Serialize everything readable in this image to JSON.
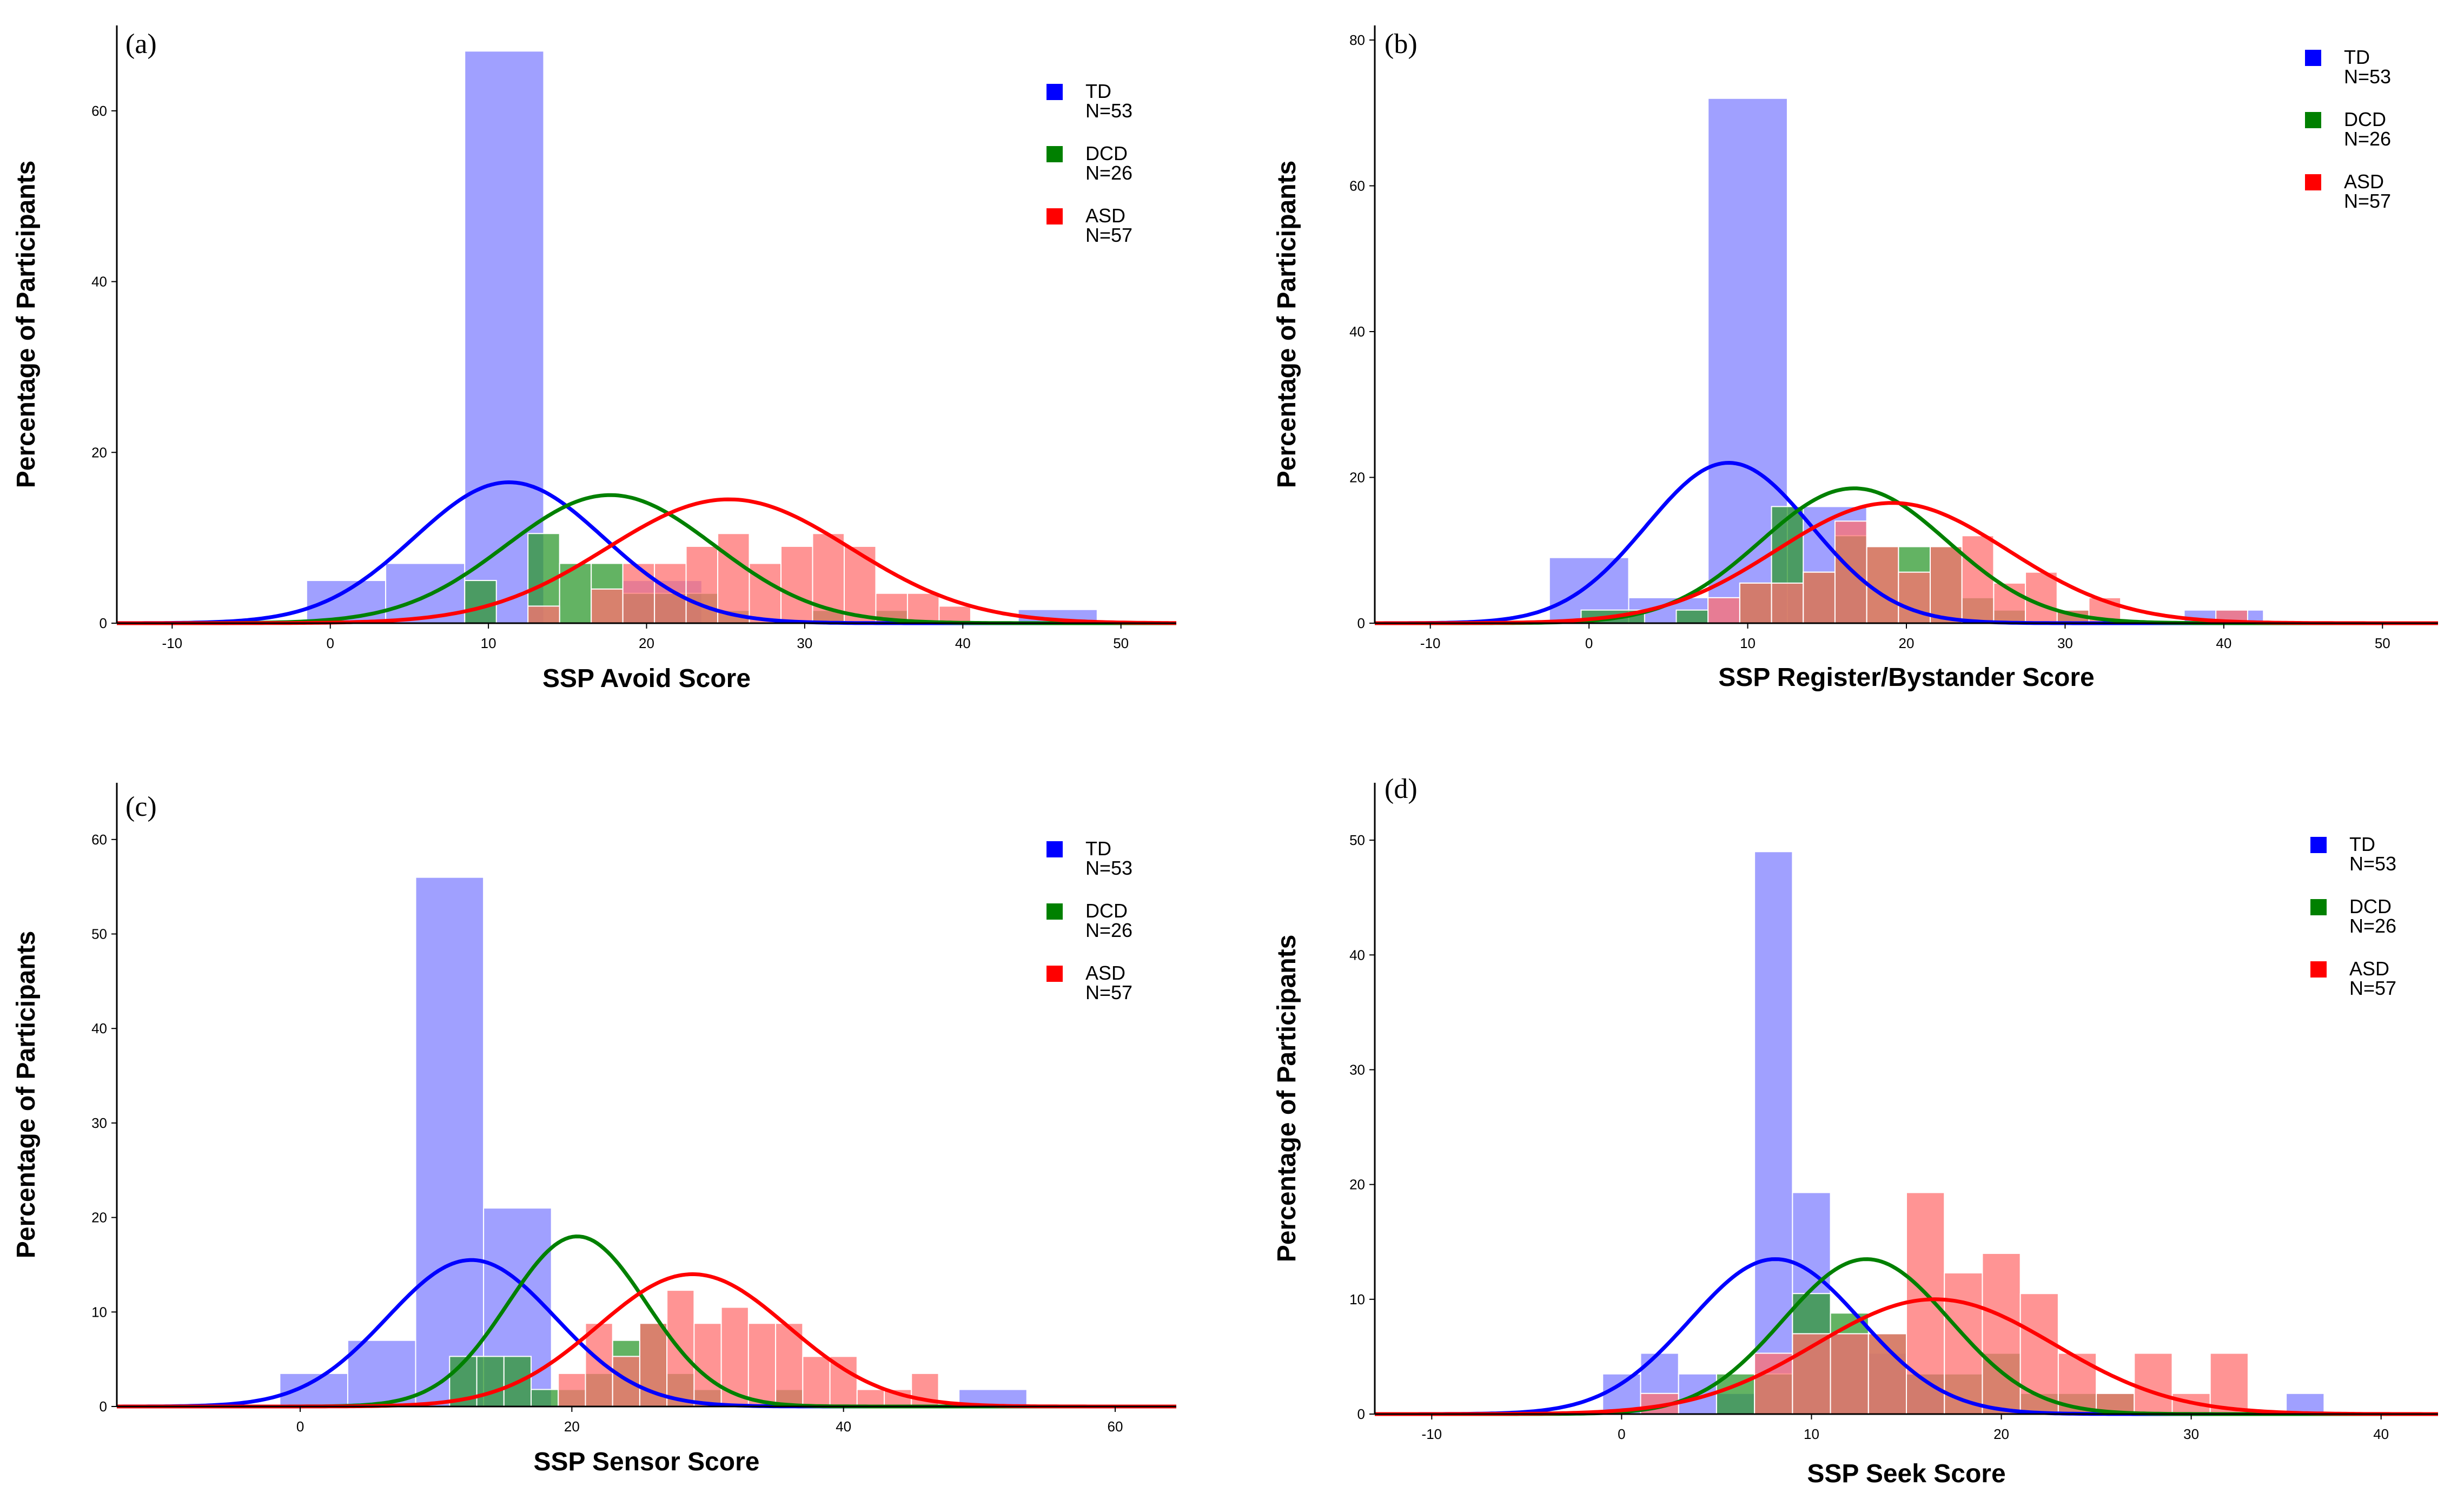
{
  "chart_data": [
    {
      "type": "histogram",
      "panel": "(a)",
      "xlabel": "SSP Avoid Score",
      "ylabel": "Percentage of Participants",
      "xlim": [
        -13.5,
        53.5
      ],
      "ylim": [
        0,
        70
      ],
      "xticks": [
        "-10",
        "0",
        "10",
        "20",
        "30",
        "40",
        "50"
      ],
      "xtick_values": [
        -10,
        0,
        10,
        20,
        30,
        40,
        50
      ],
      "yticks": [
        "0",
        "20",
        "40",
        "60"
      ],
      "ytick_values": [
        0,
        20,
        40,
        60
      ],
      "legend": [
        {
          "name": "TD",
          "n": "N=53",
          "color": "#0000ff"
        },
        {
          "name": "DCD",
          "n": "N=26",
          "color": "#008000"
        },
        {
          "name": "ASD",
          "n": "N=57",
          "color": "#ff0000"
        }
      ],
      "series": [
        {
          "name": "TD",
          "color": "#0000ff",
          "fill": "#8080ff",
          "bins": [
            [
              -1.5,
              3.5,
              5
            ],
            [
              3.5,
              8.5,
              7
            ],
            [
              8.5,
              13.5,
              67
            ],
            [
              18.5,
              23.5,
              5
            ],
            [
              43.5,
              48.5,
              1.6
            ]
          ],
          "curve": {
            "mean": 11.3,
            "sd": 6.0,
            "peak": 16.5
          }
        },
        {
          "name": "DCD",
          "color": "#008000",
          "fill": "#2f9a2f",
          "bins": [
            [
              8.5,
              10.5,
              5
            ],
            [
              12.5,
              14.5,
              10.5
            ],
            [
              14.5,
              16.5,
              7
            ],
            [
              16.5,
              18.5,
              7
            ],
            [
              18.5,
              20.5,
              3.5
            ],
            [
              20.5,
              22.5,
              3.5
            ],
            [
              22.5,
              24.5,
              3.5
            ],
            [
              24.5,
              26.5,
              1.5
            ],
            [
              30.5,
              32.5,
              1.5
            ],
            [
              34.5,
              36.5,
              1.5
            ]
          ],
          "curve": {
            "mean": 17.7,
            "sd": 6.6,
            "peak": 15
          }
        },
        {
          "name": "ASD",
          "color": "#ff0000",
          "fill": "#ff7070",
          "bins": [
            [
              12.5,
              14.5,
              2
            ],
            [
              16.5,
              18.5,
              4
            ],
            [
              18.5,
              20.5,
              7
            ],
            [
              20.5,
              22.5,
              7
            ],
            [
              22.5,
              24.5,
              9
            ],
            [
              24.5,
              26.5,
              10.5
            ],
            [
              26.5,
              28.5,
              7
            ],
            [
              28.5,
              30.5,
              9
            ],
            [
              30.5,
              32.5,
              10.5
            ],
            [
              32.5,
              34.5,
              9
            ],
            [
              34.5,
              36.5,
              3.5
            ],
            [
              36.5,
              38.5,
              3.5
            ],
            [
              38.5,
              40.5,
              2
            ]
          ],
          "curve": {
            "mean": 25.2,
            "sd": 7.7,
            "peak": 14.5
          }
        }
      ]
    },
    {
      "type": "histogram",
      "panel": "(b)",
      "xlabel": "SSP Register/Bystander Score",
      "ylabel": "Percentage of Participants",
      "xlim": [
        -13.5,
        53.5
      ],
      "ylim": [
        0,
        82
      ],
      "xticks": [
        "-10",
        "0",
        "10",
        "20",
        "30",
        "40",
        "50"
      ],
      "xtick_values": [
        -10,
        0,
        10,
        20,
        30,
        40,
        50
      ],
      "yticks": [
        "0",
        "20",
        "40",
        "60",
        "80"
      ],
      "ytick_values": [
        0,
        20,
        40,
        60,
        80
      ],
      "legend": [
        {
          "name": "TD",
          "n": "N=53",
          "color": "#0000ff"
        },
        {
          "name": "DCD",
          "n": "N=26",
          "color": "#008000"
        },
        {
          "name": "ASD",
          "n": "N=57",
          "color": "#ff0000"
        }
      ],
      "series": [
        {
          "name": "TD",
          "color": "#0000ff",
          "fill": "#8080ff",
          "bins": [
            [
              -2.5,
              2.5,
              9
            ],
            [
              2.5,
              7.5,
              3.5
            ],
            [
              7.5,
              12.5,
              72
            ],
            [
              12.5,
              17.5,
              16
            ],
            [
              37.5,
              42.5,
              1.8
            ]
          ],
          "curve": {
            "mean": 8.8,
            "sd": 5.2,
            "peak": 22
          }
        },
        {
          "name": "DCD",
          "color": "#008000",
          "fill": "#2f9a2f",
          "bins": [
            [
              -0.5,
              3.5,
              1.8
            ],
            [
              5.5,
              7.5,
              1.8
            ],
            [
              9.5,
              11.5,
              5.5
            ],
            [
              11.5,
              13.5,
              16
            ],
            [
              13.5,
              15.5,
              7
            ],
            [
              15.5,
              17.5,
              12
            ],
            [
              17.5,
              19.5,
              10.5
            ],
            [
              19.5,
              21.5,
              10.5
            ],
            [
              21.5,
              23.5,
              10.5
            ],
            [
              23.5,
              25.5,
              3.5
            ],
            [
              25.5,
              27.5,
              1.8
            ],
            [
              29.5,
              31.5,
              1.8
            ]
          ],
          "curve": {
            "mean": 16.7,
            "sd": 5.9,
            "peak": 18.5
          }
        },
        {
          "name": "ASD",
          "color": "#ff0000",
          "fill": "#ff7070",
          "bins": [
            [
              7.5,
              9.5,
              3.5
            ],
            [
              9.5,
              11.5,
              5.5
            ],
            [
              11.5,
              13.5,
              5.5
            ],
            [
              13.5,
              15.5,
              7
            ],
            [
              15.5,
              17.5,
              14
            ],
            [
              17.5,
              19.5,
              10.5
            ],
            [
              19.5,
              21.5,
              7
            ],
            [
              21.5,
              23.5,
              10.5
            ],
            [
              23.5,
              25.5,
              12
            ],
            [
              25.5,
              27.5,
              5.5
            ],
            [
              27.5,
              29.5,
              7
            ],
            [
              29.5,
              31.5,
              1.8
            ],
            [
              31.5,
              33.5,
              3.5
            ],
            [
              39.5,
              41.5,
              1.8
            ]
          ],
          "curve": {
            "mean": 19.1,
            "sd": 7.3,
            "peak": 16.5
          }
        }
      ]
    },
    {
      "type": "histogram",
      "panel": "(c)",
      "xlabel": "SSP Sensor Score",
      "ylabel": "Percentage of Participants",
      "xlim": [
        -13.5,
        64.5
      ],
      "ylim": [
        0,
        66
      ],
      "xticks": [
        "0",
        "20",
        "40",
        "60"
      ],
      "xtick_values": [
        0,
        20,
        40,
        60
      ],
      "yticks": [
        "0",
        "10",
        "20",
        "30",
        "40",
        "50",
        "60"
      ],
      "ytick_values": [
        0,
        10,
        20,
        30,
        40,
        50,
        60
      ],
      "legend": [
        {
          "name": "TD",
          "n": "N=53",
          "color": "#0000ff"
        },
        {
          "name": "DCD",
          "n": "N=26",
          "color": "#008000"
        },
        {
          "name": "ASD",
          "n": "N=57",
          "color": "#ff0000"
        }
      ],
      "series": [
        {
          "name": "TD",
          "color": "#0000ff",
          "fill": "#8080ff",
          "bins": [
            [
              -1.5,
              3.5,
              3.5
            ],
            [
              3.5,
              8.5,
              7
            ],
            [
              8.5,
              13.5,
              56
            ],
            [
              13.5,
              18.5,
              21
            ],
            [
              48.5,
              53.5,
              1.8
            ]
          ],
          "curve": {
            "mean": 12.6,
            "sd": 6.2,
            "peak": 15.5
          }
        },
        {
          "name": "DCD",
          "color": "#008000",
          "fill": "#2f9a2f",
          "bins": [
            [
              11,
              13,
              5.3
            ],
            [
              13,
              15,
              5.3
            ],
            [
              15,
              17,
              5.3
            ],
            [
              17,
              19,
              1.8
            ],
            [
              19,
              21,
              1.8
            ],
            [
              21,
              23,
              3.5
            ],
            [
              23,
              25,
              7
            ],
            [
              25,
              27,
              8.8
            ],
            [
              27,
              29,
              3.5
            ],
            [
              29,
              31,
              1.8
            ],
            [
              35,
              37,
              1.8
            ]
          ],
          "curve": {
            "mean": 20.4,
            "sd": 5.1,
            "peak": 18
          }
        },
        {
          "name": "ASD",
          "color": "#ff0000",
          "fill": "#ff7070",
          "bins": [
            [
              19,
              21,
              3.5
            ],
            [
              21,
              23,
              8.8
            ],
            [
              23,
              25,
              5.3
            ],
            [
              25,
              27,
              8.8
            ],
            [
              27,
              29,
              12.3
            ],
            [
              29,
              31,
              8.8
            ],
            [
              31,
              33,
              10.5
            ],
            [
              33,
              35,
              8.8
            ],
            [
              35,
              37,
              8.8
            ],
            [
              37,
              39,
              5.3
            ],
            [
              39,
              41,
              5.3
            ],
            [
              41,
              43,
              1.8
            ],
            [
              43,
              45,
              1.8
            ],
            [
              45,
              47,
              3.5
            ]
          ],
          "curve": {
            "mean": 28.9,
            "sd": 7.0,
            "peak": 14
          }
        }
      ]
    },
    {
      "type": "histogram",
      "panel": "(d)",
      "xlabel": "SSP Seek Score",
      "ylabel": "Percentage of Participants",
      "xlim": [
        -13,
        43
      ],
      "ylim": [
        0,
        55
      ],
      "xticks": [
        "-10",
        "0",
        "10",
        "20",
        "30",
        "40"
      ],
      "xtick_values": [
        -10,
        0,
        10,
        20,
        30,
        40
      ],
      "yticks": [
        "0",
        "10",
        "20",
        "30",
        "40",
        "50"
      ],
      "ytick_values": [
        0,
        10,
        20,
        30,
        40,
        50
      ],
      "legend": [
        {
          "name": "TD",
          "n": "N=53",
          "color": "#0000ff"
        },
        {
          "name": "DCD",
          "n": "N=26",
          "color": "#008000"
        },
        {
          "name": "ASD",
          "n": "N=57",
          "color": "#ff0000"
        }
      ],
      "series": [
        {
          "name": "TD",
          "color": "#0000ff",
          "fill": "#8080ff",
          "bins": [
            [
              -1,
              1,
              3.5
            ],
            [
              1,
              3,
              5.3
            ],
            [
              3,
              5,
              3.5
            ],
            [
              5,
              7,
              1.8
            ],
            [
              7,
              9,
              49
            ],
            [
              9,
              11,
              19.3
            ],
            [
              11,
              13,
              7
            ],
            [
              13,
              15,
              5.3
            ],
            [
              15,
              17,
              3.5
            ],
            [
              35,
              37,
              1.8
            ]
          ],
          "curve": {
            "mean": 8.1,
            "sd": 4.5,
            "peak": 13.5
          }
        },
        {
          "name": "DCD",
          "color": "#008000",
          "fill": "#2f9a2f",
          "bins": [
            [
              5,
              7,
              3.5
            ],
            [
              7,
              9,
              3.5
            ],
            [
              9,
              11,
              10.5
            ],
            [
              11,
              13,
              8.8
            ],
            [
              13,
              15,
              7
            ],
            [
              15,
              17,
              3.5
            ],
            [
              17,
              19,
              3.5
            ],
            [
              19,
              21,
              5.3
            ],
            [
              21,
              23,
              1.8
            ],
            [
              23,
              25,
              1.8
            ],
            [
              25,
              27,
              1.8
            ]
          ],
          "curve": {
            "mean": 12.9,
            "sd": 4.4,
            "peak": 13.5
          }
        },
        {
          "name": "ASD",
          "color": "#ff0000",
          "fill": "#ff7070",
          "bins": [
            [
              1,
              3,
              1.8
            ],
            [
              7,
              9,
              5.3
            ],
            [
              9,
              11,
              7
            ],
            [
              11,
              13,
              7
            ],
            [
              13,
              15,
              7
            ],
            [
              15,
              17,
              19.3
            ],
            [
              17,
              19,
              12.3
            ],
            [
              19,
              21,
              14
            ],
            [
              21,
              23,
              10.5
            ],
            [
              23,
              25,
              5.3
            ],
            [
              25,
              27,
              1.8
            ],
            [
              27,
              29,
              5.3
            ],
            [
              29,
              31,
              1.8
            ],
            [
              31,
              33,
              5.3
            ]
          ],
          "curve": {
            "mean": 16.5,
            "sd": 6.3,
            "peak": 10
          }
        }
      ]
    }
  ]
}
